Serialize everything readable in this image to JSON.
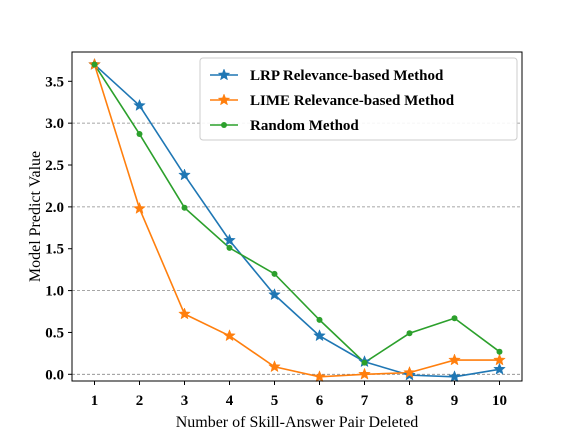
{
  "chart_data": {
    "type": "line",
    "title": "",
    "xlabel": "Number of Skill-Answer Pair Deleted",
    "ylabel": "Model Predict Value",
    "x": [
      1,
      2,
      3,
      4,
      5,
      6,
      7,
      8,
      9,
      10
    ],
    "xlim": [
      0.5,
      10.5
    ],
    "ylim": [
      -0.08,
      3.85
    ],
    "yticks": [
      0.0,
      0.5,
      1.0,
      1.5,
      2.0,
      2.5,
      3.0,
      3.5
    ],
    "ytick_labels": [
      "0.0",
      "0.5",
      "1.0",
      "1.5",
      "2.0",
      "2.5",
      "3.0",
      "3.5"
    ],
    "xtick_labels": [
      "1",
      "2",
      "3",
      "4",
      "5",
      "6",
      "7",
      "8",
      "9",
      "10"
    ],
    "grid": "horizontal dashed at 0.0, 1.0, 2.0, 3.0",
    "grid_values": [
      0.0,
      1.0,
      2.0,
      3.0
    ],
    "legend_position": "top-right",
    "series": [
      {
        "name": "LRP Relevance-based Method",
        "color": "#1f77b4",
        "marker": "star",
        "values": [
          3.7,
          3.21,
          2.38,
          1.6,
          0.95,
          0.46,
          0.15,
          -0.01,
          -0.03,
          0.06
        ]
      },
      {
        "name": "LIME Relevance-based Method",
        "color": "#ff7f0e",
        "marker": "star",
        "values": [
          3.7,
          1.98,
          0.72,
          0.46,
          0.09,
          -0.03,
          0.0,
          0.02,
          0.17,
          0.17
        ]
      },
      {
        "name": "Random Method",
        "color": "#2ca02c",
        "marker": "circle",
        "values": [
          3.7,
          2.87,
          1.99,
          1.51,
          1.2,
          0.65,
          0.14,
          0.49,
          0.67,
          0.27
        ]
      }
    ]
  }
}
